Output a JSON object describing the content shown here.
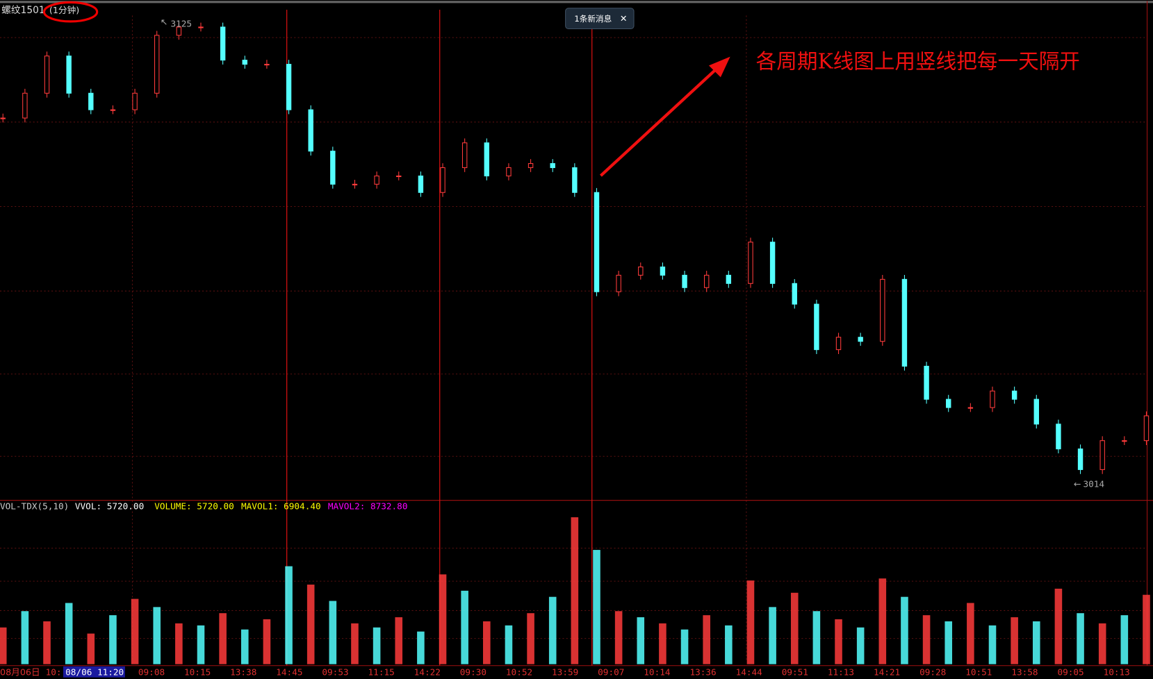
{
  "header": {
    "symbol": "螺纹1501",
    "period": "(1分钟)"
  },
  "notification": {
    "text": "1条新消息",
    "close": "✕"
  },
  "annotation": "各周期K线图上用竖线把每一天隔开",
  "price_high": 3125,
  "price_low": 3014,
  "price_path": [
    3102,
    3108,
    3117,
    3108,
    3104,
    3104,
    3108,
    3122,
    3124,
    3124,
    3116,
    3115,
    3115,
    3104,
    3094,
    3086,
    3086,
    3088,
    3088,
    3084,
    3090,
    3096,
    3088,
    3090,
    3091,
    3090,
    3084,
    3060,
    3064,
    3066,
    3064,
    3061,
    3064,
    3062,
    3072,
    3062,
    3057,
    3046,
    3049,
    3048,
    3063,
    3042,
    3034,
    3032,
    3032,
    3036,
    3034,
    3028,
    3022,
    3017,
    3024,
    3024,
    3030
  ],
  "volume": [
    1800,
    2600,
    2100,
    3000,
    1500,
    2400,
    3200,
    2800,
    2000,
    1900,
    2500,
    1700,
    2200,
    4800,
    3900,
    3100,
    2000,
    1800,
    2300,
    1600,
    4400,
    3600,
    2100,
    1900,
    2500,
    3300,
    7200,
    5600,
    2600,
    2300,
    2000,
    1700,
    2400,
    1900,
    4100,
    2800,
    3500,
    2600,
    2200,
    1800,
    4200,
    3300,
    2400,
    2100,
    3000,
    1900,
    2300,
    2100,
    3700,
    2500,
    2000,
    2400,
    3400
  ],
  "indicator": {
    "name": "VOL-TDX(5,10)",
    "vvol": "VVOL: 5720.00",
    "volume": "VOLUME: 5720.00",
    "mavol1": "MAVOL1: 6904.40",
    "mavol2": "MAVOL2: 8732.80"
  },
  "time_axis": {
    "date": "08月06日",
    "cursor_time": "10:",
    "cursor": "08/06 11:20",
    "labels": [
      "09:08",
      "10:15",
      "13:38",
      "14:45",
      "09:53",
      "11:15",
      "14:22",
      "09:30",
      "10:52",
      "13:59",
      "09:07",
      "10:14",
      "13:36",
      "14:44",
      "09:51",
      "11:13",
      "14:21",
      "09:28",
      "10:51",
      "13:58",
      "09:05",
      "10:13"
    ]
  }
}
